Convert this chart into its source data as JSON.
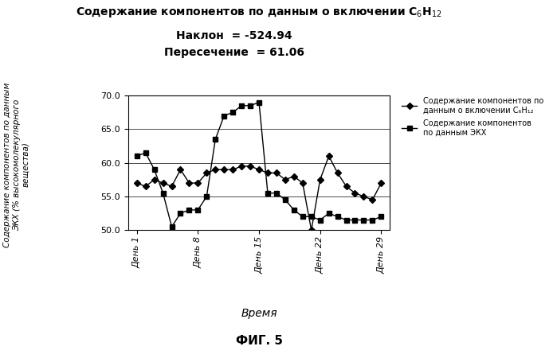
{
  "subtitle_line1": "Наклон  = -524.94",
  "subtitle_line2": "Пересечение  = 61.06",
  "xlabel": "Время",
  "ylabel": "Содержание компонентов по данным\nЭКХ (% высокомолекулярного\nвещества)",
  "figcaption": "ФИГ. 5",
  "ylim": [
    50.0,
    70.0
  ],
  "yticks": [
    50.0,
    55.0,
    60.0,
    65.0,
    70.0
  ],
  "xtick_labels": [
    "День 1",
    "День 8",
    "День 15",
    "День 22",
    "День 29"
  ],
  "xtick_positions": [
    1,
    8,
    15,
    22,
    29
  ],
  "series1_label": "Содержание компонентов по\nданным о включении C₆H₁₂",
  "series2_label": "Содержание компонентов\nпо данным ЭКХ",
  "series1_x": [
    1,
    2,
    3,
    4,
    5,
    6,
    7,
    8,
    9,
    10,
    11,
    12,
    13,
    14,
    15,
    16,
    17,
    18,
    19,
    20,
    21,
    22,
    23,
    24,
    25,
    26,
    27,
    28,
    29
  ],
  "series1_y": [
    57.0,
    56.5,
    57.5,
    57.0,
    56.5,
    59.0,
    57.0,
    57.0,
    58.5,
    59.0,
    59.0,
    59.0,
    59.5,
    59.5,
    59.0,
    58.5,
    58.5,
    57.5,
    58.0,
    57.0,
    50.0,
    57.5,
    61.0,
    58.5,
    56.5,
    55.5,
    55.0,
    54.5,
    57.0
  ],
  "series2_x": [
    1,
    2,
    3,
    4,
    5,
    6,
    7,
    8,
    9,
    10,
    11,
    12,
    13,
    14,
    15,
    16,
    17,
    18,
    19,
    20,
    21,
    22,
    23,
    24,
    25,
    26,
    27,
    28,
    29
  ],
  "series2_y": [
    61.0,
    61.5,
    59.0,
    55.5,
    50.5,
    52.5,
    53.0,
    53.0,
    55.0,
    63.5,
    67.0,
    67.5,
    68.5,
    68.5,
    69.0,
    55.5,
    55.5,
    54.5,
    53.0,
    52.0,
    52.0,
    51.5,
    52.5,
    52.0,
    51.5,
    51.5,
    51.5,
    51.5,
    52.0
  ],
  "color1": "#000000",
  "color2": "#000000",
  "marker1": "D",
  "marker2": "s",
  "markersize": 4,
  "linewidth": 1.0,
  "background": "#ffffff",
  "title_fontsize": 10,
  "subtitle_fontsize": 10,
  "ylabel_fontsize": 7.5,
  "xlabel_fontsize": 10,
  "caption_fontsize": 11,
  "tick_fontsize": 8,
  "legend_fontsize": 7
}
